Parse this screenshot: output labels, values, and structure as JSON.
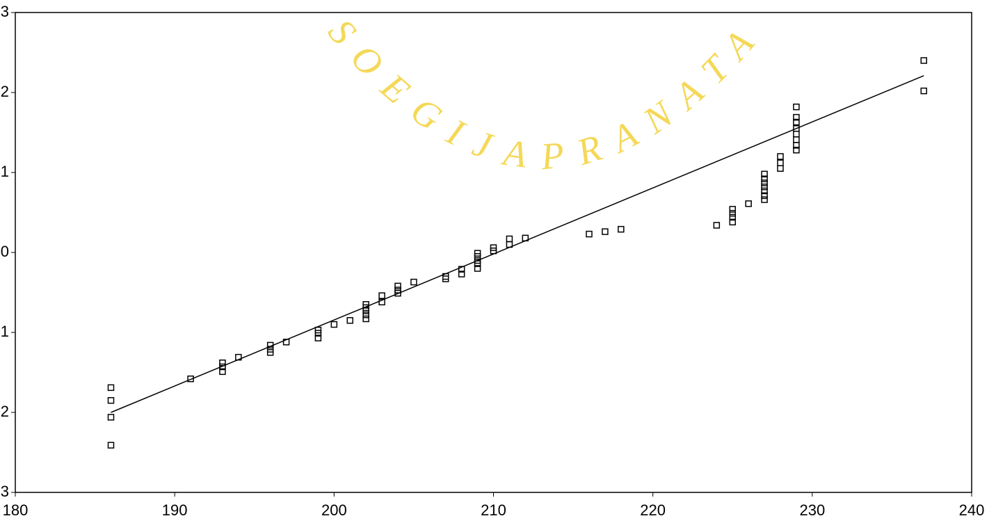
{
  "chart_data": {
    "type": "scatter",
    "watermark": "SOEGIJAPRANATA",
    "xlim": [
      180,
      240
    ],
    "xticks": [
      180,
      190,
      200,
      210,
      220,
      230,
      240
    ],
    "ylim": [
      -3,
      3
    ],
    "yticks": [
      {
        "value": -3,
        "label": "3"
      },
      {
        "value": -2,
        "label": "2"
      },
      {
        "value": -1,
        "label": "1"
      },
      0,
      1,
      2,
      3
    ],
    "series": [
      {
        "color": "#000000",
        "x": [
          186,
          186,
          186,
          186,
          191,
          193,
          193,
          193,
          194,
          196,
          196,
          196,
          197,
          199,
          199,
          199,
          200,
          201,
          202,
          202,
          202,
          202,
          202,
          203,
          203,
          204,
          204,
          204,
          205,
          207,
          207,
          208,
          208,
          209,
          209,
          209,
          209,
          209,
          210,
          210,
          211,
          211,
          212,
          216,
          217,
          218,
          224,
          225,
          225,
          225,
          225,
          226,
          227,
          227,
          227,
          227,
          227,
          227,
          227,
          228,
          228,
          228,
          229,
          229,
          229,
          229,
          229,
          229,
          229,
          229,
          237,
          237
        ],
        "values": [
          -1.69,
          -1.85,
          -2.06,
          -2.41,
          -1.58,
          -1.38,
          -1.43,
          -1.49,
          -1.31,
          -1.16,
          -1.21,
          -1.25,
          -1.12,
          -0.97,
          -1.01,
          -1.07,
          -0.9,
          -0.85,
          -0.65,
          -0.69,
          -0.73,
          -0.78,
          -0.83,
          -0.54,
          -0.62,
          -0.42,
          -0.47,
          -0.51,
          -0.37,
          -0.3,
          -0.33,
          -0.21,
          -0.27,
          -0.01,
          -0.05,
          -0.1,
          -0.14,
          -0.2,
          0.06,
          0.02,
          0.17,
          0.1,
          0.18,
          0.23,
          0.26,
          0.29,
          0.34,
          0.54,
          0.49,
          0.44,
          0.38,
          0.61,
          0.98,
          0.92,
          0.87,
          0.82,
          0.77,
          0.71,
          0.66,
          1.2,
          1.12,
          1.05,
          1.82,
          1.69,
          1.63,
          1.55,
          1.48,
          1.41,
          1.34,
          1.28,
          2.4,
          2.02
        ]
      }
    ],
    "fit_line": {
      "color": "#000000",
      "x": [
        186,
        237
      ],
      "values": [
        -2.0,
        2.21
      ]
    }
  }
}
